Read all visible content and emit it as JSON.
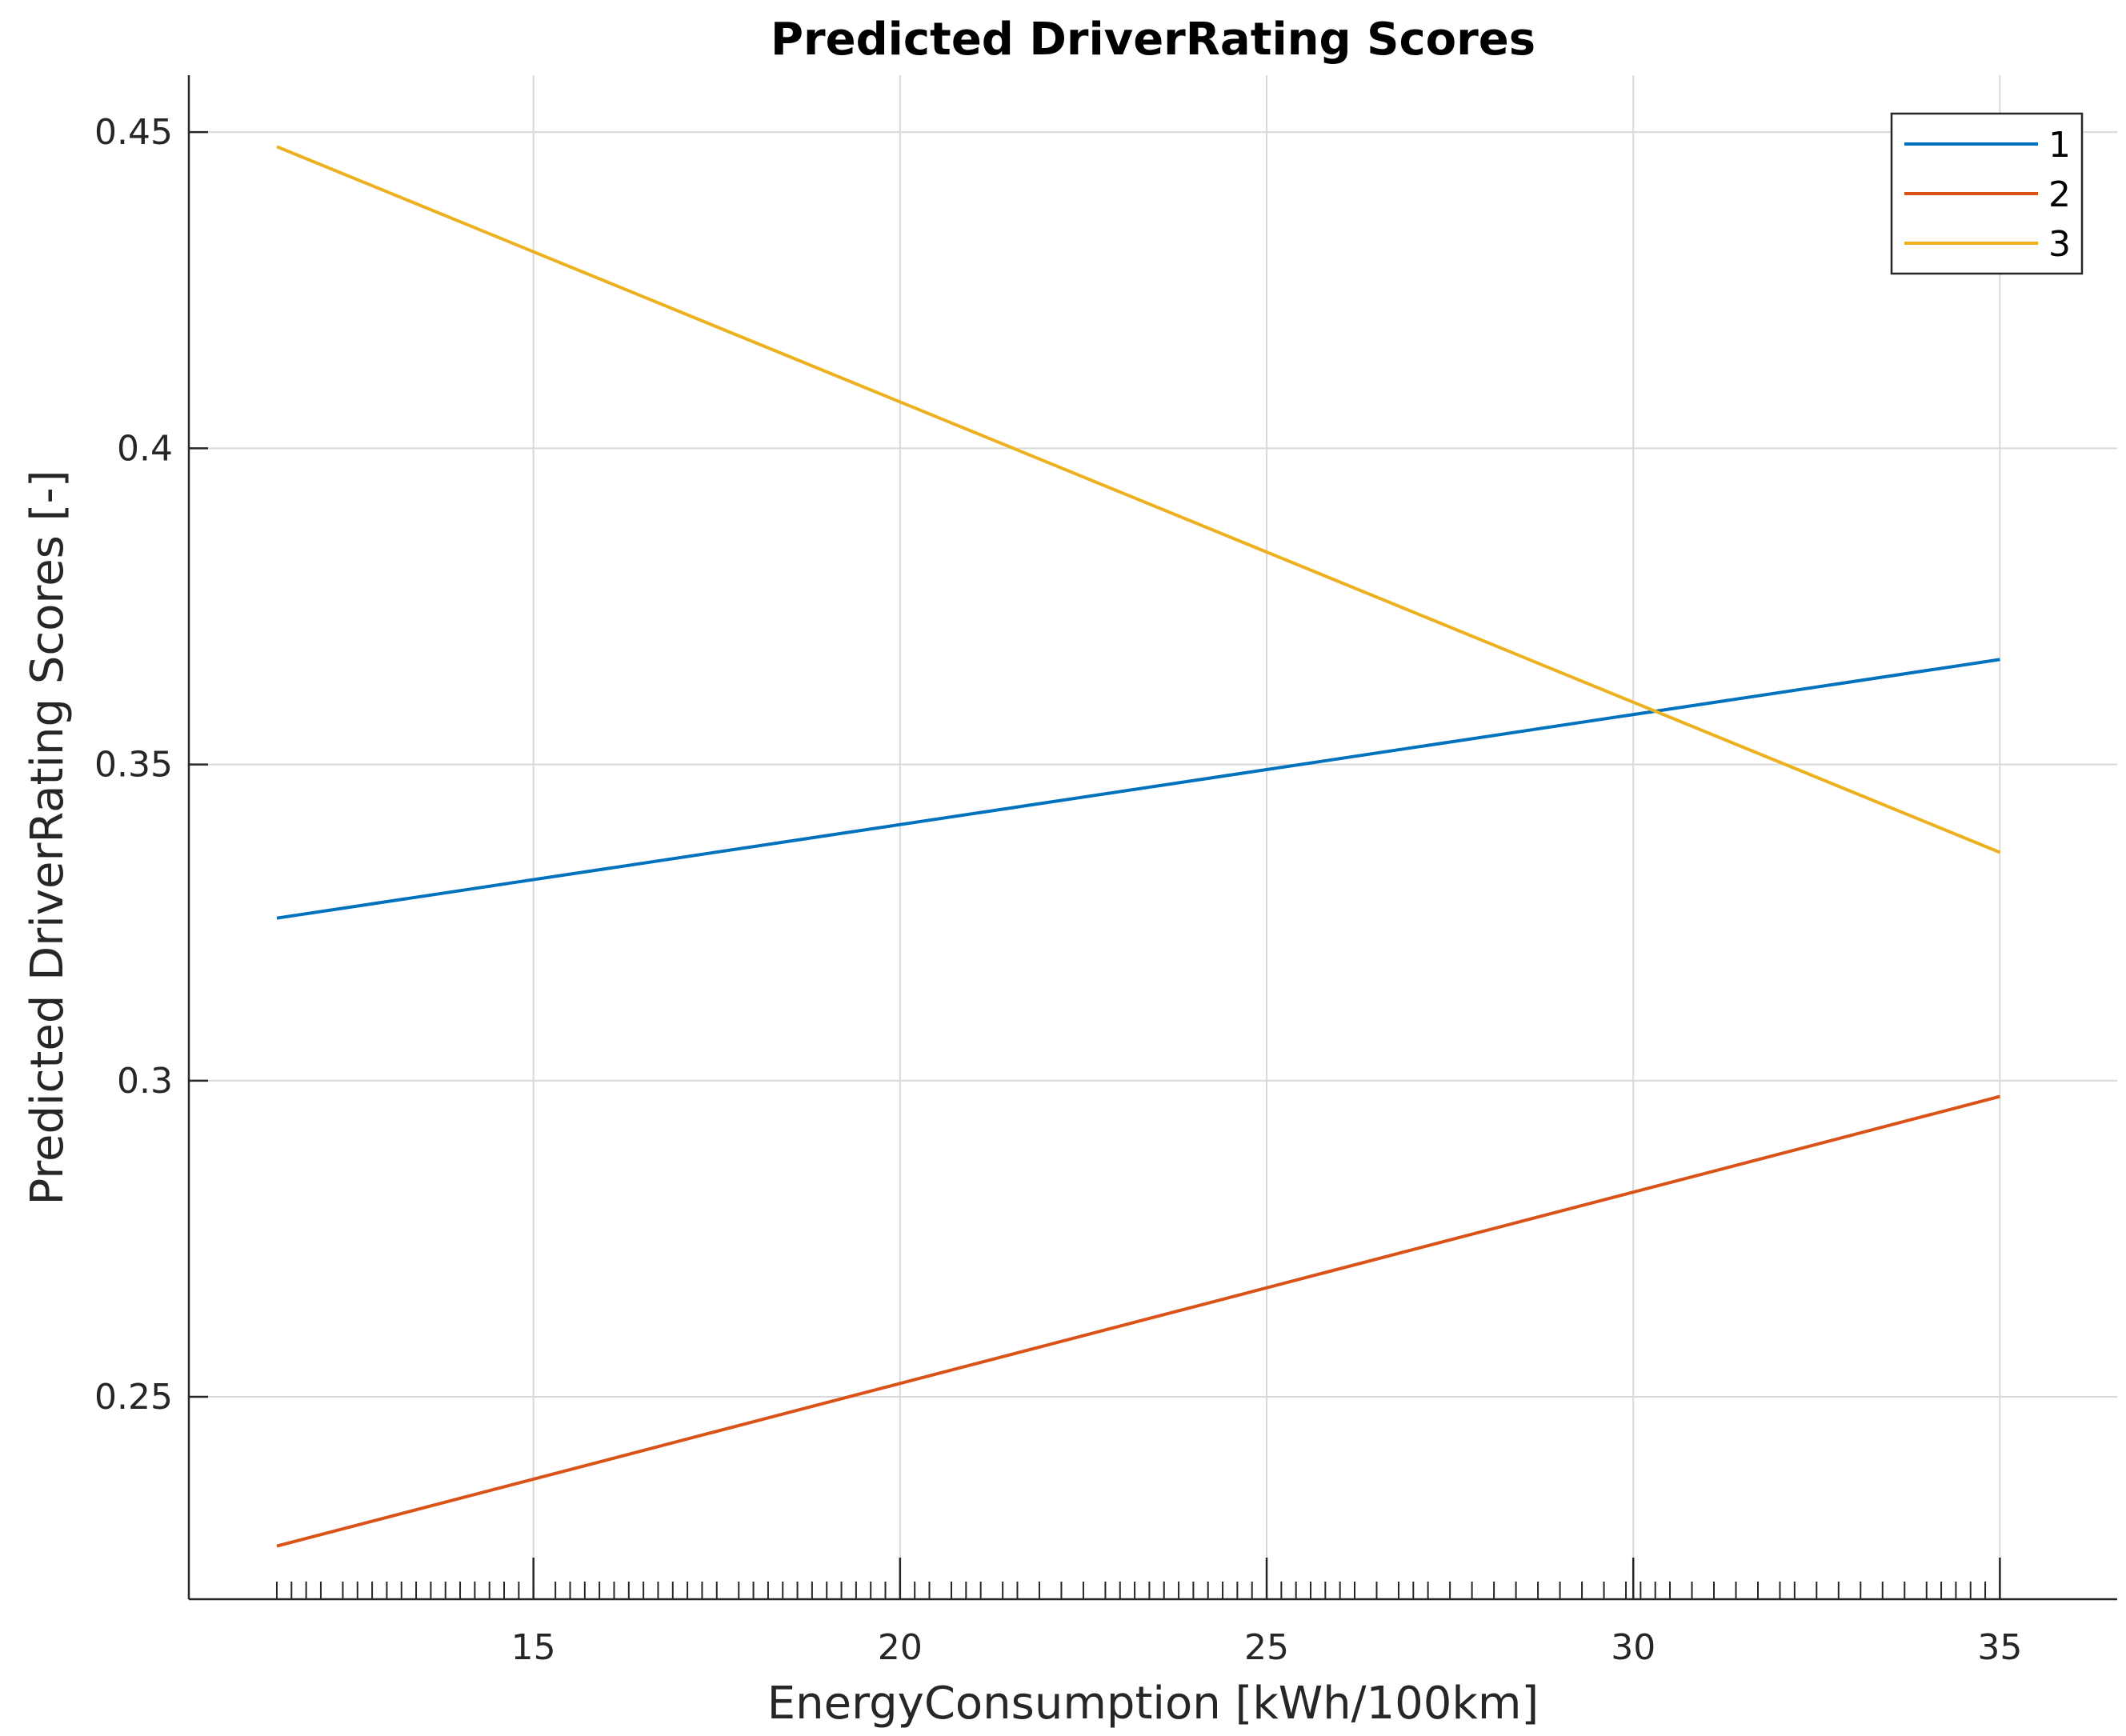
{
  "chart_data": {
    "type": "line",
    "title": "Predicted DriverRating Scores",
    "xlabel": "EnergyConsumption [kWh/100km]",
    "ylabel": "Predicted DriverRating Scores [-]",
    "xlim": [
      10.3,
      36.6
    ],
    "ylim": [
      0.218,
      0.459
    ],
    "xticks": [
      15,
      20,
      25,
      30,
      35
    ],
    "xtick_labels": [
      "15",
      "20",
      "25",
      "30",
      "35"
    ],
    "yticks": [
      0.25,
      0.3,
      0.35,
      0.4,
      0.45
    ],
    "ytick_labels": [
      "0.25",
      "0.3",
      "0.35",
      "0.4",
      "0.45"
    ],
    "grid": true,
    "legend_position": "top-right",
    "series": [
      {
        "name": "1",
        "color": "#0072BD",
        "x": [
          11.5,
          35
        ],
        "y": [
          0.3257,
          0.3666
        ]
      },
      {
        "name": "2",
        "color": "#D95319",
        "x": [
          11.5,
          35
        ],
        "y": [
          0.2264,
          0.2975
        ]
      },
      {
        "name": "3",
        "color": "#EDB120",
        "x": [
          11.5,
          35
        ],
        "y": [
          0.4477,
          0.3361
        ]
      }
    ],
    "rug_x": [
      11.5,
      11.7,
      11.9,
      12.1,
      12.4,
      12.6,
      12.8,
      13.0,
      13.2,
      13.4,
      13.6,
      13.8,
      14.0,
      14.2,
      14.4,
      14.6,
      14.8,
      15.0,
      15.3,
      15.5,
      15.7,
      15.9,
      16.1,
      16.3,
      16.5,
      16.7,
      16.9,
      17.1,
      17.3,
      17.5,
      17.8,
      18.0,
      18.2,
      18.4,
      18.6,
      18.8,
      19.0,
      19.2,
      19.4,
      19.6,
      19.8,
      20.0,
      20.2,
      20.4,
      20.7,
      20.9,
      21.1,
      21.4,
      21.6,
      21.9,
      22.2,
      22.5,
      22.8,
      23.0,
      23.2,
      23.4,
      23.6,
      23.8,
      24.0,
      24.2,
      24.4,
      24.6,
      24.8,
      25.0,
      25.2,
      25.4,
      25.6,
      25.8,
      26.0,
      26.2,
      26.5,
      26.8,
      27.0,
      27.2,
      27.5,
      27.8,
      28.1,
      28.4,
      28.7,
      29.0,
      29.3,
      29.6,
      29.9,
      30.1,
      30.3,
      30.5,
      30.8,
      31.1,
      31.4,
      31.7,
      32.0,
      32.2,
      32.5,
      32.8,
      33.1,
      33.4,
      33.7,
      34.0,
      34.2,
      34.4,
      34.6,
      34.8,
      35.0
    ]
  }
}
